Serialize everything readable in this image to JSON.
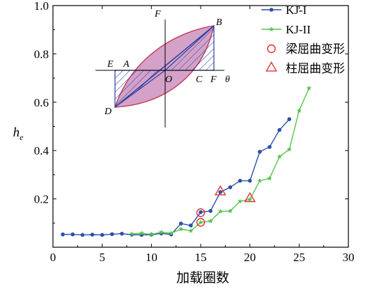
{
  "chart_data": {
    "type": "line",
    "xlabel": "加载圈数",
    "ylabel": "h",
    "ylabel_subscript": "e",
    "xlim": [
      0,
      30
    ],
    "ylim": [
      0,
      1.0
    ],
    "xticks": [
      0,
      5,
      10,
      15,
      20,
      25,
      30
    ],
    "yticks": [
      0.2,
      0.4,
      0.6,
      0.8,
      1.0
    ],
    "ytick_labels": [
      "0.2",
      "0.4",
      "0.6",
      "0.8",
      "1.0"
    ],
    "legend_position": "top-right",
    "series": [
      {
        "name": "KJ-I",
        "color": "#2a4fa8",
        "marker": "circle",
        "x": [
          1,
          2,
          3,
          4,
          5,
          6,
          7,
          8,
          9,
          10,
          11,
          12,
          13,
          14,
          15,
          16,
          17,
          18,
          19,
          20,
          21,
          22,
          23,
          24
        ],
        "y": [
          0.053,
          0.053,
          0.051,
          0.052,
          0.051,
          0.054,
          0.056,
          0.052,
          0.051,
          0.052,
          0.057,
          0.053,
          0.098,
          0.09,
          0.145,
          0.15,
          0.228,
          0.248,
          0.275,
          0.275,
          0.395,
          0.415,
          0.485,
          0.53
        ]
      },
      {
        "name": "KJ-II",
        "color": "#55c44a",
        "marker": "star",
        "x": [
          8,
          9,
          10,
          11,
          12,
          13,
          14,
          15,
          16,
          17,
          18,
          19,
          20,
          21,
          22,
          23,
          24,
          25,
          26
        ],
        "y": [
          0.055,
          0.058,
          0.053,
          0.062,
          0.058,
          0.075,
          0.068,
          0.103,
          0.108,
          0.148,
          0.15,
          0.19,
          0.198,
          0.275,
          0.285,
          0.375,
          0.405,
          0.565,
          0.658
        ]
      }
    ],
    "annotations": [
      {
        "name": "梁屈曲变形",
        "marker": "circle-open",
        "color": "#e03030",
        "points": [
          [
            15,
            0.143
          ],
          [
            15,
            0.103
          ]
        ]
      },
      {
        "name": "柱屈曲变形",
        "marker": "triangle-open",
        "color": "#e03030",
        "points": [
          [
            17,
            0.228
          ],
          [
            20,
            0.2
          ]
        ]
      }
    ],
    "inset": {
      "axis_labels": {
        "x": "θ",
        "y": "F"
      },
      "point_labels": [
        "A",
        "B",
        "C",
        "D",
        "E",
        "F",
        "O"
      ],
      "colors": {
        "loop_fill": "#d4a1c8",
        "loop_stroke": "#c0304a",
        "hatch": "#2a3fa0"
      }
    }
  }
}
